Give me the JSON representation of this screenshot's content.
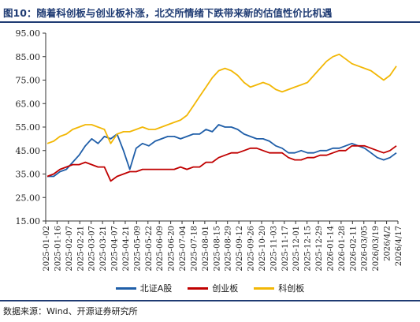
{
  "title": "图10：随着科创板与创业板补涨，北交所情绪下跌带来新的估值性价比机遇",
  "source": "数据来源：Wind、开源证券研究所",
  "colors": {
    "bse": "#1f5ea8",
    "chinext": "#c00000",
    "star": "#f2b705",
    "title": "#1f3b73"
  },
  "chart_data": {
    "type": "line",
    "ylim": [
      15,
      95
    ],
    "yticks": [
      "15.00",
      "25.00",
      "35.00",
      "45.00",
      "55.00",
      "65.00",
      "75.00",
      "85.00",
      "95.00"
    ],
    "xticks": [
      "2025-01-02",
      "2025-01-16",
      "2025-02-07",
      "2025-02-21",
      "2025-03-07",
      "2025-03-21",
      "2025-04-07",
      "2025-04-21",
      "2025-05-09",
      "2025-05-22",
      "2025-06-09",
      "2025-06-20",
      "2025-07-04",
      "2025-07-18",
      "2025-08-01",
      "2025-08-15",
      "2025-08-29",
      "2025-09-12",
      "2025-09-26",
      "2025-10-20",
      "2025-11-03",
      "2025-11-17",
      "2025-12-01",
      "2025-12-15",
      "2025-12-29",
      "2026-01-14",
      "2026-01-28",
      "2026-02-11",
      "2026-03/05",
      "2026/03/19",
      "2026/4/2",
      "2026/4/17"
    ],
    "series": [
      {
        "name": "北证A股",
        "color": "#1f5ea8",
        "values": [
          34,
          34,
          36,
          37,
          40,
          43,
          47,
          50,
          48,
          51,
          50,
          52,
          45,
          37,
          46,
          48,
          47,
          49,
          50,
          51,
          51,
          50,
          51,
          52,
          52,
          54,
          53,
          56,
          55,
          55,
          54,
          52,
          51,
          50,
          50,
          49,
          47,
          46,
          44,
          44,
          45,
          44,
          44,
          45,
          45,
          46,
          46,
          47,
          48,
          47,
          46,
          44,
          42,
          41,
          42,
          44
        ]
      },
      {
        "name": "创业板",
        "color": "#c00000",
        "values": [
          34,
          35,
          37,
          38,
          39,
          39,
          40,
          39,
          38,
          38,
          32,
          34,
          35,
          36,
          36,
          37,
          37,
          37,
          37,
          37,
          37,
          38,
          37,
          38,
          38,
          40,
          40,
          42,
          43,
          44,
          44,
          45,
          46,
          46,
          45,
          44,
          44,
          44,
          42,
          41,
          41,
          42,
          42,
          43,
          43,
          44,
          45,
          45,
          47,
          47,
          47,
          46,
          45,
          44,
          45,
          47
        ]
      },
      {
        "name": "科创板",
        "color": "#f2b705",
        "values": [
          48,
          49,
          51,
          52,
          54,
          55,
          56,
          56,
          55,
          54,
          48,
          52,
          53,
          53,
          54,
          55,
          54,
          54,
          55,
          56,
          57,
          58,
          60,
          64,
          68,
          72,
          76,
          79,
          80,
          79,
          77,
          74,
          72,
          73,
          74,
          73,
          71,
          70,
          71,
          72,
          73,
          74,
          77,
          80,
          83,
          85,
          86,
          84,
          82,
          81,
          80,
          79,
          77,
          75,
          77,
          81
        ]
      }
    ]
  }
}
